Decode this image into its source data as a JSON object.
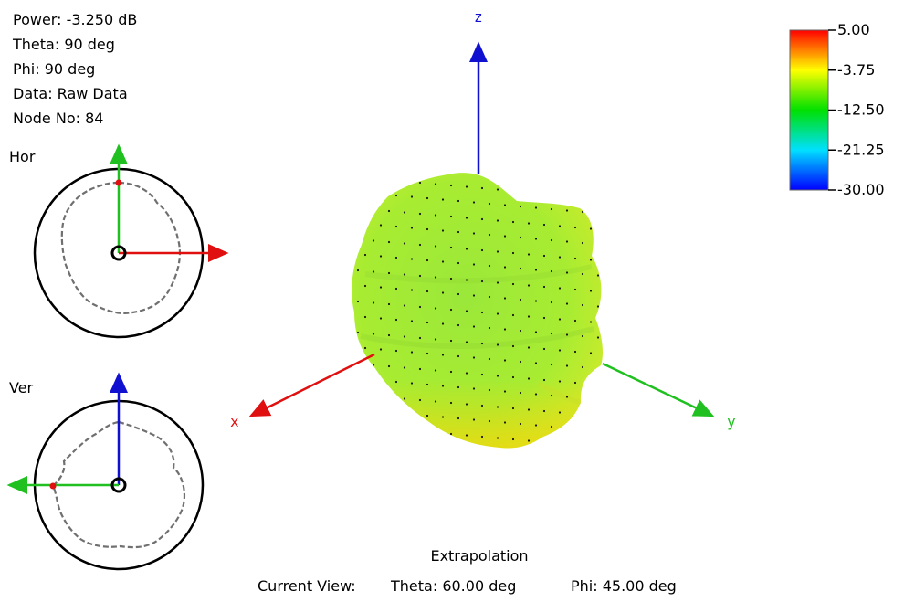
{
  "info": {
    "power": "Power: -3.250 dB",
    "theta": "Theta: 90 deg",
    "phi": "Phi: 90 deg",
    "data": "Data: Raw Data",
    "node": "Node No: 84"
  },
  "polar_plots": {
    "horizontal_label": "Hor",
    "vertical_label": "Ver"
  },
  "axes": {
    "x": "x",
    "y": "y",
    "z": "z"
  },
  "legend": {
    "ticks": [
      "5.00",
      "-3.75",
      "-12.50",
      "-21.25",
      "-30.00"
    ],
    "colors": [
      "#ff0000",
      "#ffff00",
      "#00e000",
      "#00e0ff",
      "#0000ff"
    ]
  },
  "footer": {
    "mode": "Extrapolation",
    "current_view_label": "Current View:",
    "theta": "Theta: 60.00 deg",
    "phi": "Phi: 45.00 deg"
  },
  "colors": {
    "x_axis": "#e01010",
    "y_axis": "#20c020",
    "z_axis": "#1010d0",
    "pattern_trace": "#707070",
    "pattern_fill_top": "#b8f030",
    "pattern_fill_bottom": "#f0e020"
  }
}
